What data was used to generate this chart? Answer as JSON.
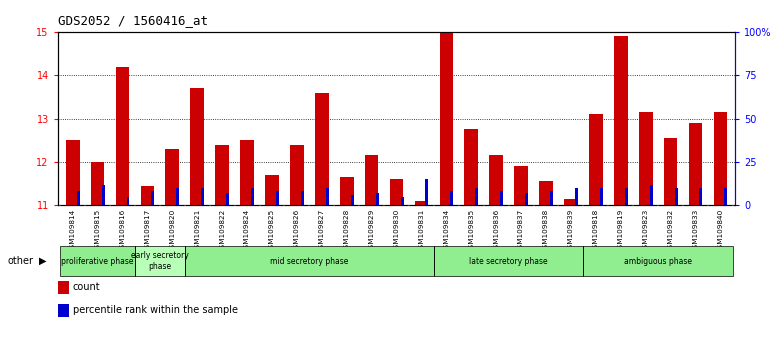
{
  "title": "GDS2052 / 1560416_at",
  "samples": [
    "GSM109814",
    "GSM109815",
    "GSM109816",
    "GSM109817",
    "GSM109820",
    "GSM109821",
    "GSM109822",
    "GSM109824",
    "GSM109825",
    "GSM109826",
    "GSM109827",
    "GSM109828",
    "GSM109829",
    "GSM109830",
    "GSM109831",
    "GSM109834",
    "GSM109835",
    "GSM109836",
    "GSM109837",
    "GSM109838",
    "GSM109839",
    "GSM109818",
    "GSM109819",
    "GSM109823",
    "GSM109832",
    "GSM109833",
    "GSM109840"
  ],
  "count_values": [
    12.5,
    12.0,
    14.2,
    11.45,
    12.3,
    13.7,
    12.4,
    12.5,
    11.7,
    12.4,
    13.6,
    11.65,
    12.15,
    11.6,
    11.1,
    15.0,
    12.75,
    12.15,
    11.9,
    11.55,
    11.15,
    13.1,
    14.9,
    13.15,
    12.55,
    12.9,
    13.15
  ],
  "percentile_values": [
    8,
    12,
    5,
    8,
    10,
    10,
    7,
    10,
    8,
    8,
    10,
    6,
    7,
    5,
    15,
    8,
    10,
    8,
    7,
    8,
    10,
    10,
    10,
    12,
    10,
    10,
    10
  ],
  "ylim_left": [
    11,
    15
  ],
  "ylim_right": [
    0,
    100
  ],
  "y_ticks_left": [
    11,
    12,
    13,
    14,
    15
  ],
  "y_ticks_right": [
    0,
    25,
    50,
    75,
    100
  ],
  "count_color": "#CC0000",
  "percentile_color": "#0000CC",
  "phases": [
    {
      "label": "proliferative phase",
      "start": 0,
      "end": 3,
      "color": "#90EE90"
    },
    {
      "label": "early secretory\nphase",
      "start": 3,
      "end": 5,
      "color": "#B8FFB8"
    },
    {
      "label": "mid secretory phase",
      "start": 5,
      "end": 15,
      "color": "#90EE90"
    },
    {
      "label": "late secretory phase",
      "start": 15,
      "end": 21,
      "color": "#90EE90"
    },
    {
      "label": "ambiguous phase",
      "start": 21,
      "end": 27,
      "color": "#90EE90"
    }
  ],
  "phase_separator_indices": [
    3,
    5,
    15,
    21
  ]
}
